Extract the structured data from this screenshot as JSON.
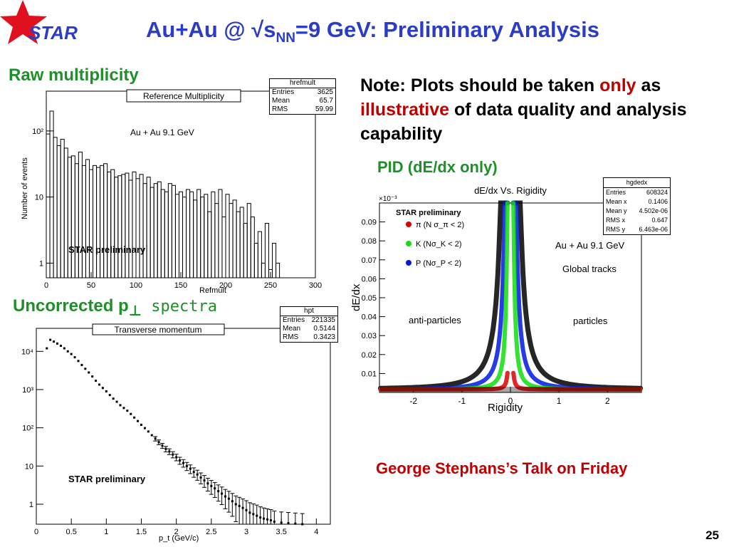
{
  "logo": {
    "text": "STAR",
    "star_color": "#e0101e",
    "text_color": "#2a3cc8"
  },
  "slide": {
    "title_main": "Au+Au @ √s",
    "title_sub": "NN",
    "title_rest": "=9 GeV: Preliminary Analysis",
    "page_number": "25",
    "accent_color": "#1f8f2a",
    "title_color": "#2a3cc8",
    "highlight_color": "#c00000"
  },
  "sections": {
    "raw_heading": "Raw multiplicity",
    "pt_heading_main": "Uncorrected p",
    "pt_heading_sub": "⊥",
    "pt_heading_mono": " spectra",
    "pid_heading": "PID (dE/dx only)"
  },
  "note": {
    "part1": "Note: Plots should be taken ",
    "only": "only",
    "part2": " as ",
    "illustrative": "illustrative",
    "part3": " of data quality and analysis capability"
  },
  "talk": "George Stephans’s Talk on Friday",
  "chart_data": [
    {
      "type": "line",
      "title": "Reference Multiplicity",
      "xlabel": "Refmult",
      "ylabel": "Number of events",
      "annotation": "Au + Au 9.1 GeV",
      "watermark": "STAR preliminary",
      "xlim": [
        0,
        300
      ],
      "ylim": [
        0.6,
        400
      ],
      "yscale": "log",
      "xticks": [
        0,
        50,
        100,
        150,
        200,
        250,
        300
      ],
      "yticks": [
        "1",
        "10",
        "10²"
      ],
      "stats": {
        "title": "hrefmult",
        "rows": [
          [
            "Entries",
            "3625"
          ],
          [
            "Mean",
            "65.7"
          ],
          [
            "RMS",
            "59.99"
          ]
        ]
      },
      "x": [
        2,
        6,
        10,
        14,
        18,
        22,
        26,
        30,
        34,
        38,
        42,
        46,
        50,
        54,
        58,
        62,
        66,
        70,
        74,
        78,
        82,
        86,
        90,
        94,
        98,
        102,
        106,
        110,
        114,
        118,
        122,
        126,
        130,
        134,
        138,
        142,
        146,
        150,
        154,
        158,
        162,
        166,
        170,
        174,
        178,
        182,
        186,
        190,
        194,
        198,
        202,
        206,
        210,
        214,
        218,
        222,
        226,
        230,
        234,
        238,
        242,
        246,
        250,
        254,
        258
      ],
      "values": [
        90,
        200,
        80,
        60,
        75,
        55,
        40,
        42,
        32,
        48,
        30,
        37,
        26,
        30,
        28,
        30,
        32,
        24,
        26,
        20,
        21,
        22,
        23,
        18,
        24,
        19,
        22,
        16,
        20,
        14,
        16,
        17,
        13,
        12,
        16,
        15,
        11,
        12,
        10,
        13,
        12,
        9,
        13,
        10,
        11,
        6,
        12,
        8,
        13,
        5,
        11,
        8,
        9,
        6,
        7,
        4,
        8,
        5,
        2,
        3,
        1,
        4,
        0.8,
        2,
        1
      ]
    },
    {
      "type": "scatter",
      "title": "Transverse momentum",
      "xlabel": "p_t (GeV/c)",
      "ylabel": "",
      "watermark": "STAR preliminary",
      "xlim": [
        0,
        4.2
      ],
      "ylim": [
        0.3,
        40000
      ],
      "yscale": "log",
      "xticks": [
        0,
        0.5,
        1,
        1.5,
        2,
        2.5,
        3,
        3.5,
        4
      ],
      "yticks": [
        "1",
        "10",
        "10²",
        "10³",
        "10⁴"
      ],
      "stats": {
        "title": "hpt",
        "rows": [
          [
            "Entries",
            "221335"
          ],
          [
            "Mean",
            "0.5144"
          ],
          [
            "RMS",
            "0.3423"
          ]
        ]
      },
      "x": [
        0.15,
        0.2,
        0.25,
        0.3,
        0.35,
        0.4,
        0.45,
        0.5,
        0.55,
        0.6,
        0.65,
        0.7,
        0.75,
        0.8,
        0.85,
        0.9,
        0.95,
        1.0,
        1.05,
        1.1,
        1.15,
        1.2,
        1.25,
        1.3,
        1.35,
        1.4,
        1.45,
        1.5,
        1.55,
        1.6,
        1.65,
        1.7,
        1.75,
        1.8,
        1.85,
        1.9,
        1.95,
        2.0,
        2.05,
        2.1,
        2.15,
        2.2,
        2.25,
        2.3,
        2.35,
        2.4,
        2.45,
        2.5,
        2.55,
        2.6,
        2.65,
        2.7,
        2.75,
        2.8,
        2.85,
        2.9,
        2.95,
        3.0,
        3.05,
        3.1,
        3.15,
        3.2,
        3.25,
        3.3,
        3.35,
        3.4,
        3.5,
        3.6,
        3.7,
        3.8
      ],
      "values": [
        12000,
        20000,
        18000,
        16000,
        14000,
        12000,
        10000,
        8500,
        7000,
        5600,
        4400,
        3500,
        2800,
        2200,
        1700,
        1350,
        1100,
        900,
        720,
        580,
        480,
        390,
        330,
        280,
        230,
        185,
        150,
        120,
        98,
        80,
        64,
        52,
        42,
        34,
        28,
        24,
        20,
        17,
        14,
        12,
        10,
        8.5,
        7,
        6,
        5,
        4.2,
        3.5,
        3,
        2.6,
        2.2,
        1.9,
        1.6,
        1.4,
        1.2,
        1.0,
        0.9,
        0.8,
        0.7,
        0.6,
        0.55,
        0.5,
        0.45,
        0.42,
        0.4,
        0.38,
        0.35,
        0.33,
        0.32,
        0.31,
        0.3
      ]
    },
    {
      "type": "scatter",
      "title": "dE/dx Vs. Rigidity",
      "xlabel": "Rigidity",
      "ylabel": "dE/dx",
      "y_multiplier": "×10⁻³",
      "watermark": "STAR preliminary",
      "annotations": [
        "Au + Au 9.1 GeV",
        "Global tracks",
        "anti-particles",
        "particles"
      ],
      "xlim": [
        -2.7,
        2.7
      ],
      "ylim": [
        0,
        0.1
      ],
      "xticks": [
        -2,
        -1,
        0,
        1,
        2
      ],
      "yticks": [
        0.01,
        0.02,
        0.03,
        0.04,
        0.05,
        0.06,
        0.07,
        0.08,
        0.09
      ],
      "stats": {
        "title": "hgdedx",
        "rows": [
          [
            "Entries",
            "608324"
          ],
          [
            "Mean x",
            "0.1406"
          ],
          [
            "Mean y",
            "4.502e-06"
          ],
          [
            "RMS x",
            "0.647"
          ],
          [
            "RMS y",
            "6.463e-06"
          ]
        ]
      },
      "series": [
        {
          "name": "π (N σ_π < 2)",
          "color": "#e00000",
          "mass": 0.14
        },
        {
          "name": "K (Nσ_K < 2)",
          "color": "#11dd11",
          "mass": 0.494
        },
        {
          "name": "P (Nσ_P < 2)",
          "color": "#0018e0",
          "mass": 0.938
        }
      ]
    }
  ]
}
